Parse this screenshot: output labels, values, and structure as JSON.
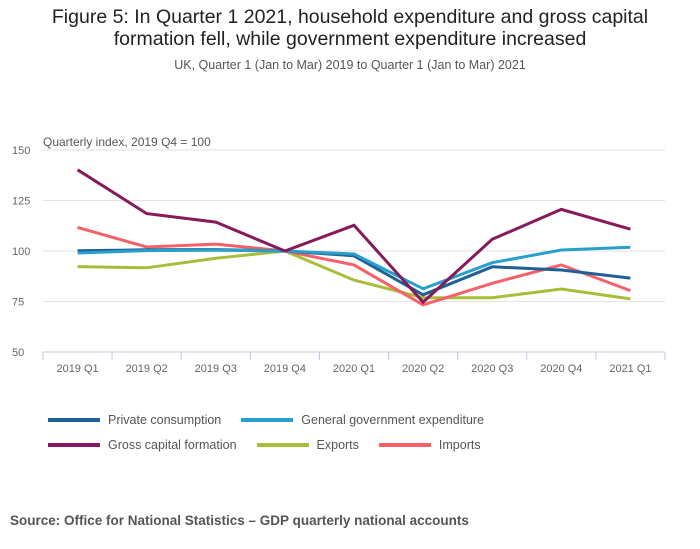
{
  "chart_data": {
    "type": "line",
    "title": "Figure 5: In Quarter 1 2021, household expenditure and gross capital formation fell, while government expenditure increased",
    "title_lines": [
      "Figure 5: In Quarter 1 2021, household expenditure and gross capital",
      "formation fell, while government expenditure increased"
    ],
    "subtitle": "UK, Quarter 1 (Jan to Mar) 2019 to Quarter 1 (Jan to Mar) 2021",
    "ylabel": "Quarterly index, 2019 Q4 = 100",
    "xlabel": "",
    "ylim": [
      50,
      150
    ],
    "yticks": [
      150,
      125,
      100,
      75,
      50
    ],
    "grid": true,
    "legend_position": "bottom-left",
    "categories": [
      "2019 Q1",
      "2019 Q2",
      "2019 Q3",
      "2019 Q4",
      "2020 Q1",
      "2020 Q2",
      "2020 Q3",
      "2020 Q4",
      "2021 Q1"
    ],
    "series": [
      {
        "name": "Private consumption",
        "color": "#206095",
        "values": [
          100.1,
          100.6,
          100.7,
          100.0,
          97.6,
          78.3,
          92.2,
          90.6,
          86.6
        ]
      },
      {
        "name": "General government expenditure",
        "color": "#27A0CC",
        "values": [
          99.0,
          100.2,
          100.4,
          100.0,
          98.5,
          81.3,
          94.2,
          100.5,
          101.9
        ]
      },
      {
        "name": "Gross capital formation",
        "color": "#871A5B",
        "values": [
          140.2,
          118.5,
          114.3,
          100.0,
          112.7,
          74.7,
          105.8,
          120.6,
          110.8
        ]
      },
      {
        "name": "Exports",
        "color": "#A8BD3A",
        "values": [
          92.3,
          91.7,
          96.4,
          100.0,
          85.6,
          76.9,
          76.9,
          81.2,
          76.3
        ]
      },
      {
        "name": "Imports",
        "color": "#F66068",
        "values": [
          111.7,
          102.0,
          103.4,
          100.0,
          93.1,
          73.3,
          84.0,
          93.1,
          80.4
        ]
      }
    ],
    "source": "Source: Office for National Statistics – GDP quarterly national accounts"
  },
  "legend_rows": [
    [
      0,
      1
    ],
    [
      2,
      3,
      4
    ]
  ]
}
